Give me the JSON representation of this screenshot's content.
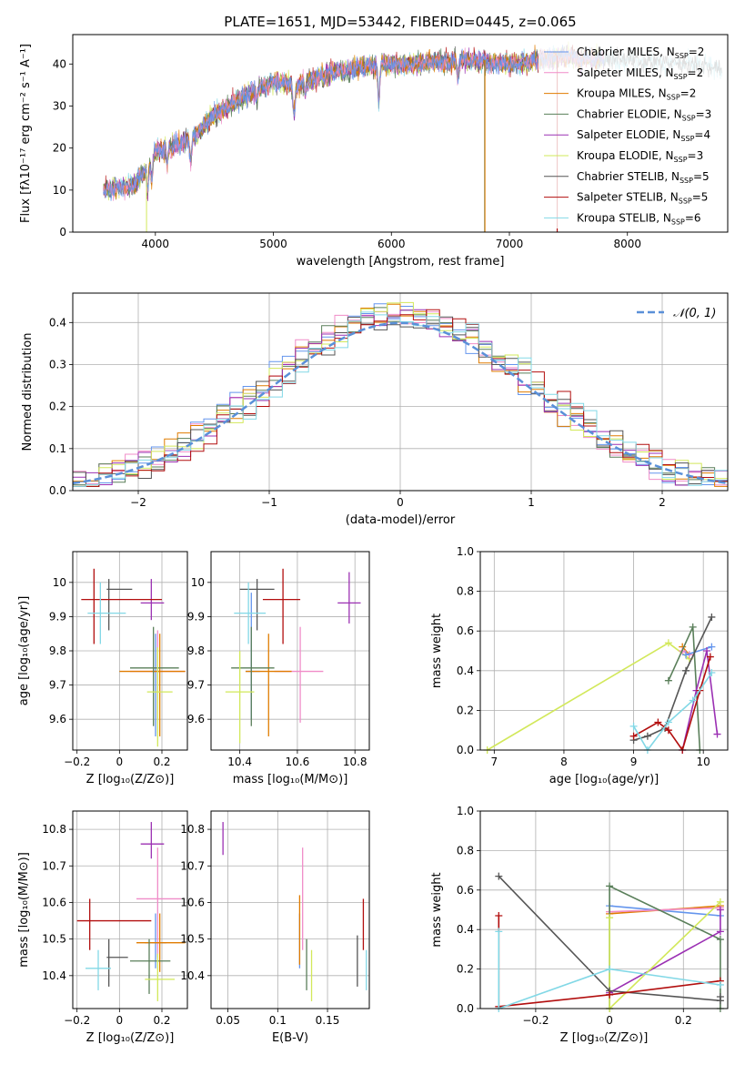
{
  "title": "PLATE=1651, MJD=53442, FIBERID=0445, z=0.065",
  "colors": {
    "cm": "#6495ed",
    "sm": "#f08cc8",
    "km": "#e07c00",
    "ce": "#5a7f5a",
    "se": "#9b30b3",
    "ke": "#d2e85a",
    "cs": "#555555",
    "ss": "#b20e0e",
    "ks": "#82d8e6",
    "norm": "#5a90d8"
  },
  "chart_data": [
    {
      "id": "spectrum",
      "type": "line",
      "xlabel": "wavelength [Angstrom, rest frame]",
      "ylabel": "Flux [fλ10⁻¹⁷ erg cm⁻² s⁻¹ A⁻¹]",
      "xlim": [
        3300,
        8850
      ],
      "ylim": [
        0,
        47
      ],
      "xticks": [
        4000,
        5000,
        6000,
        7000,
        8000
      ],
      "yticks": [
        0,
        10,
        20,
        30,
        40
      ],
      "x_range": [
        3560,
        8800
      ],
      "continuum": {
        "x": [
          3560,
          3800,
          3900,
          4000,
          4300,
          4500,
          4800,
          5000,
          5200,
          5500,
          5900,
          6200,
          6600,
          7000,
          7500,
          8000,
          8500,
          8800
        ],
        "y": [
          10,
          11,
          14,
          19,
          22,
          28,
          33,
          36,
          35,
          38,
          40,
          40,
          41,
          40,
          42,
          41,
          40,
          39
        ]
      },
      "legend": [
        {
          "key": "cm",
          "label": "Chabrier MILES, N",
          "n": "=2"
        },
        {
          "key": "sm",
          "label": "Salpeter MILES, N",
          "n": "=2"
        },
        {
          "key": "km",
          "label": "Kroupa MILES, N",
          "n": "=2"
        },
        {
          "key": "ce",
          "label": "Chabrier ELODIE, N",
          "n": "=3"
        },
        {
          "key": "se",
          "label": "Salpeter ELODIE, N",
          "n": "=4"
        },
        {
          "key": "ke",
          "label": "Kroupa ELODIE, N",
          "n": "=3"
        },
        {
          "key": "cs",
          "label": "Chabrier STELIB, N",
          "n": "=5"
        },
        {
          "key": "ss",
          "label": "Salpeter STELIB, N",
          "n": "=5"
        },
        {
          "key": "ks",
          "label": "Kroupa STELIB, N",
          "n": "=6"
        }
      ],
      "legend_sub": "SSP"
    },
    {
      "id": "residuals",
      "type": "histogram",
      "xlabel": "(data-model)/error",
      "ylabel": "Normed distribution",
      "xlim": [
        -2.5,
        2.5
      ],
      "ylim": [
        0,
        0.47
      ],
      "xticks": [
        -2,
        -1,
        0,
        1,
        2
      ],
      "yticks": [
        0.0,
        0.1,
        0.2,
        0.3,
        0.4
      ],
      "bin_width": 0.1,
      "legend_label": "𝒩(0, 1)"
    },
    {
      "id": "age-vs-Z",
      "type": "scatter",
      "xlabel": "Z [log₁₀(Z/Z⊙)]",
      "ylabel": "age  [log₁₀(age/yr)]",
      "xlim": [
        -0.22,
        0.32
      ],
      "ylim": [
        9.51,
        10.09
      ],
      "xticks": [
        -0.2,
        0.0,
        0.2
      ],
      "yticks": [
        9.6,
        9.7,
        9.8,
        9.9,
        10.0
      ],
      "points": [
        {
          "key": "cm",
          "x": 0.17,
          "y": 9.74,
          "x0": 0.15,
          "x1": 0.19,
          "y0": 9.55,
          "y1": 9.85
        },
        {
          "key": "sm",
          "x": 0.18,
          "y": 9.74,
          "x0": 0.05,
          "x1": 0.31,
          "y0": 9.6,
          "y1": 9.86
        },
        {
          "key": "km",
          "x": 0.19,
          "y": 9.74,
          "x0": 0.0,
          "x1": 0.31,
          "y0": 9.55,
          "y1": 9.85
        },
        {
          "key": "ce",
          "x": 0.16,
          "y": 9.75,
          "x0": 0.05,
          "x1": 0.28,
          "y0": 9.58,
          "y1": 9.87
        },
        {
          "key": "se",
          "x": 0.15,
          "y": 9.94,
          "x0": 0.1,
          "x1": 0.21,
          "y0": 9.89,
          "y1": 10.01
        },
        {
          "key": "ke",
          "x": 0.18,
          "y": 9.68,
          "x0": 0.13,
          "x1": 0.25,
          "y0": 9.52,
          "y1": 9.81
        },
        {
          "key": "cs",
          "x": -0.05,
          "y": 9.98,
          "x0": -0.06,
          "x1": 0.06,
          "y0": 9.86,
          "y1": 10.01
        },
        {
          "key": "ss",
          "x": -0.12,
          "y": 9.95,
          "x0": -0.18,
          "x1": 0.2,
          "y0": 9.82,
          "y1": 10.04
        },
        {
          "key": "ks",
          "x": -0.09,
          "y": 9.91,
          "x0": -0.15,
          "x1": 0.03,
          "y0": 9.82,
          "y1": 10.0
        }
      ]
    },
    {
      "id": "age-vs-mass",
      "type": "scatter",
      "xlabel": "mass [log₁₀(M/M⊙)]",
      "ylabel": "",
      "xlim": [
        10.3,
        10.85
      ],
      "ylim": [
        9.51,
        10.09
      ],
      "xticks": [
        10.4,
        10.6,
        10.8
      ],
      "yticks": [
        9.6,
        9.7,
        9.8,
        9.9,
        10.0
      ],
      "points": [
        {
          "key": "cm",
          "x": 10.44,
          "y": 9.74,
          "x0": 10.42,
          "x1": 10.47,
          "y0": 9.6,
          "y1": 9.97
        },
        {
          "key": "sm",
          "x": 10.61,
          "y": 9.74,
          "x0": 10.52,
          "x1": 10.69,
          "y0": 9.59,
          "y1": 9.87
        },
        {
          "key": "km",
          "x": 10.5,
          "y": 9.74,
          "x0": 10.42,
          "x1": 10.58,
          "y0": 9.55,
          "y1": 9.85
        },
        {
          "key": "ce",
          "x": 10.44,
          "y": 9.75,
          "x0": 10.37,
          "x1": 10.52,
          "y0": 9.58,
          "y1": 9.87
        },
        {
          "key": "se",
          "x": 10.78,
          "y": 9.94,
          "x0": 10.74,
          "x1": 10.82,
          "y0": 9.88,
          "y1": 10.03
        },
        {
          "key": "ke",
          "x": 10.4,
          "y": 9.68,
          "x0": 10.35,
          "x1": 10.45,
          "y0": 9.53,
          "y1": 9.8
        },
        {
          "key": "cs",
          "x": 10.46,
          "y": 9.98,
          "x0": 10.4,
          "x1": 10.52,
          "y0": 9.86,
          "y1": 10.01
        },
        {
          "key": "ss",
          "x": 10.55,
          "y": 9.95,
          "x0": 10.48,
          "x1": 10.61,
          "y0": 9.82,
          "y1": 10.04
        },
        {
          "key": "ks",
          "x": 10.43,
          "y": 9.91,
          "x0": 10.38,
          "x1": 10.49,
          "y0": 9.82,
          "y1": 10.0
        }
      ]
    },
    {
      "id": "weight-vs-age",
      "type": "line",
      "xlabel": "age  [log₁₀(age/yr)]",
      "ylabel": "mass weight",
      "xlim": [
        6.8,
        10.35
      ],
      "ylim": [
        0,
        1.0
      ],
      "xticks": [
        7,
        8,
        9,
        10
      ],
      "yticks": [
        0.0,
        0.2,
        0.4,
        0.6,
        0.8,
        1.0
      ],
      "series": [
        {
          "key": "ke",
          "x": [
            6.9,
            9.5,
            9.8
          ],
          "y": [
            0.0,
            0.54,
            0.46
          ]
        },
        {
          "key": "km",
          "x": [
            9.7,
            9.8
          ],
          "y": [
            0.52,
            0.48
          ]
        },
        {
          "key": "sm",
          "x": [
            9.7,
            9.8
          ],
          "y": [
            0.5,
            0.48
          ]
        },
        {
          "key": "cm",
          "x": [
            9.75,
            10.12
          ],
          "y": [
            0.48,
            0.52
          ]
        },
        {
          "key": "ce",
          "x": [
            9.5,
            9.85,
            9.95
          ],
          "y": [
            0.35,
            0.62,
            0.0
          ]
        },
        {
          "key": "se",
          "x": [
            9.7,
            9.9,
            10.05,
            10.2
          ],
          "y": [
            0.0,
            0.3,
            0.5,
            0.08
          ]
        },
        {
          "key": "cs",
          "x": [
            9.0,
            9.2,
            9.45,
            9.75,
            10.12
          ],
          "y": [
            0.05,
            0.07,
            0.11,
            0.4,
            0.67
          ]
        },
        {
          "key": "ss",
          "x": [
            9.0,
            9.35,
            9.5,
            9.7,
            9.95,
            10.1
          ],
          "y": [
            0.07,
            0.14,
            0.1,
            0.0,
            0.3,
            0.47
          ]
        },
        {
          "key": "ks",
          "x": [
            9.0,
            9.2,
            9.5,
            9.85,
            10.12
          ],
          "y": [
            0.12,
            0.0,
            0.14,
            0.25,
            0.39
          ]
        }
      ]
    },
    {
      "id": "mass-vs-Z",
      "type": "scatter",
      "xlabel": "Z [log₁₀(Z/Z⊙)]",
      "ylabel": "mass [log₁₀(M/M⊙)]",
      "xlim": [
        -0.22,
        0.32
      ],
      "ylim": [
        10.31,
        10.85
      ],
      "xticks": [
        -0.2,
        0.0,
        0.2
      ],
      "yticks": [
        10.4,
        10.5,
        10.6,
        10.7,
        10.8
      ],
      "points": [
        {
          "key": "cm",
          "x": 0.17,
          "y": 10.49,
          "x0": 0.12,
          "x1": 0.22,
          "y0": 10.42,
          "y1": 10.57
        },
        {
          "key": "sm",
          "x": 0.18,
          "y": 10.61,
          "x0": 0.08,
          "x1": 0.29,
          "y0": 10.45,
          "y1": 10.75
        },
        {
          "key": "km",
          "x": 0.19,
          "y": 10.49,
          "x0": 0.08,
          "x1": 0.31,
          "y0": 10.41,
          "y1": 10.57
        },
        {
          "key": "ce",
          "x": 0.14,
          "y": 10.44,
          "x0": 0.05,
          "x1": 0.24,
          "y0": 10.35,
          "y1": 10.5
        },
        {
          "key": "se",
          "x": 0.15,
          "y": 10.76,
          "x0": 0.1,
          "x1": 0.21,
          "y0": 10.72,
          "y1": 10.82
        },
        {
          "key": "ke",
          "x": 0.18,
          "y": 10.39,
          "x0": 0.12,
          "x1": 0.26,
          "y0": 10.33,
          "y1": 10.46
        },
        {
          "key": "cs",
          "x": -0.05,
          "y": 10.45,
          "x0": -0.06,
          "x1": 0.04,
          "y0": 10.37,
          "y1": 10.5
        },
        {
          "key": "ss",
          "x": -0.14,
          "y": 10.55,
          "x0": -0.2,
          "x1": 0.15,
          "y0": 10.47,
          "y1": 10.61
        },
        {
          "key": "ks",
          "x": -0.1,
          "y": 10.42,
          "x0": -0.16,
          "x1": -0.04,
          "y0": 10.36,
          "y1": 10.47
        }
      ]
    },
    {
      "id": "mass-vs-ebv",
      "type": "scatter",
      "xlabel": "E(B-V)",
      "ylabel": "",
      "xlim": [
        0.033,
        0.192
      ],
      "ylim": [
        10.31,
        10.85
      ],
      "xticks": [
        0.05,
        0.1,
        0.15
      ],
      "yticks": [
        10.4,
        10.5,
        10.6,
        10.7,
        10.8
      ],
      "points": [
        {
          "key": "cm",
          "x": 0.122,
          "y": 10.49,
          "y0": 10.42,
          "y1": 10.57
        },
        {
          "key": "sm",
          "x": 0.125,
          "y": 10.61,
          "y0": 10.47,
          "y1": 10.75
        },
        {
          "key": "km",
          "x": 0.122,
          "y": 10.49,
          "y0": 10.43,
          "y1": 10.62
        },
        {
          "key": "ce",
          "x": 0.129,
          "y": 10.44,
          "y0": 10.36,
          "y1": 10.5
        },
        {
          "key": "se",
          "x": 0.045,
          "y": 10.77,
          "y0": 10.73,
          "y1": 10.82
        },
        {
          "key": "ke",
          "x": 0.134,
          "y": 10.39,
          "y0": 10.33,
          "y1": 10.47
        },
        {
          "key": "cs",
          "x": 0.18,
          "y": 10.45,
          "y0": 10.37,
          "y1": 10.51
        },
        {
          "key": "ss",
          "x": 0.186,
          "y": 10.55,
          "y0": 10.47,
          "y1": 10.61
        },
        {
          "key": "ks",
          "x": 0.189,
          "y": 10.42,
          "y0": 10.36,
          "y1": 10.47
        }
      ]
    },
    {
      "id": "weight-vs-Z",
      "type": "line",
      "xlabel": "Z [log₁₀(Z/Z⊙)]",
      "ylabel": "mass weight",
      "xlim": [
        -0.35,
        0.32
      ],
      "ylim": [
        0,
        1.0
      ],
      "xticks": [
        -0.2,
        0.0,
        0.2
      ],
      "yticks": [
        0.0,
        0.2,
        0.4,
        0.6,
        0.8,
        1.0
      ],
      "series": [
        {
          "key": "cm",
          "x": [
            0.0,
            0.3
          ],
          "y": [
            0.52,
            0.47
          ]
        },
        {
          "key": "km",
          "x": [
            0.0,
            0.3
          ],
          "y": [
            0.48,
            0.52
          ]
        },
        {
          "key": "sm",
          "x": [
            0.0,
            0.3
          ],
          "y": [
            0.49,
            0.51
          ]
        },
        {
          "key": "ce",
          "x": [
            0.0,
            0.0,
            0.3,
            0.3
          ],
          "y": [
            0.0,
            0.62,
            0.35,
            0.0
          ]
        },
        {
          "key": "se",
          "x": [
            0.0,
            0.3,
            0.3
          ],
          "y": [
            0.08,
            0.39,
            0.5
          ]
        },
        {
          "key": "ke",
          "x": [
            0.0,
            0.0,
            0.3
          ],
          "y": [
            0.46,
            0.0,
            0.54
          ]
        },
        {
          "key": "cs",
          "x": [
            -0.3,
            0.0,
            0.3,
            0.3
          ],
          "y": [
            0.67,
            0.09,
            0.04,
            0.06
          ]
        },
        {
          "key": "ss",
          "x": [
            -0.3,
            -0.3,
            0.0,
            0.3
          ],
          "y": [
            0.47,
            0.01,
            0.07,
            0.14
          ]
        },
        {
          "key": "ks",
          "x": [
            -0.3,
            -0.3,
            0.0,
            0.3
          ],
          "y": [
            0.39,
            0.0,
            0.2,
            0.12
          ]
        }
      ]
    }
  ]
}
